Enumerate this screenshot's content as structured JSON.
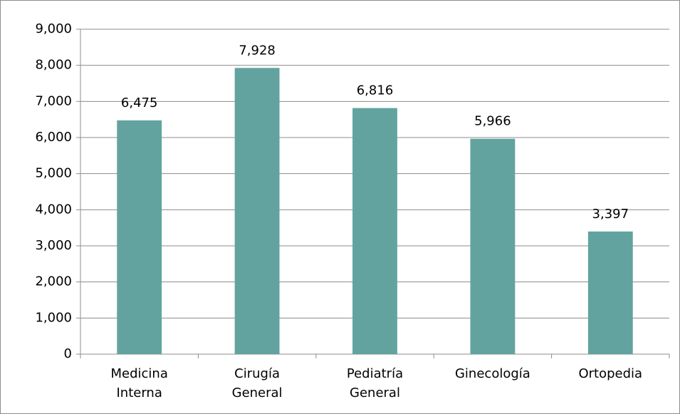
{
  "chart_data": {
    "type": "bar",
    "categories": [
      "Medicina Interna",
      "Cirugía General",
      "Pediatría General",
      "Ginecología",
      "Ortopedia"
    ],
    "values": [
      6475,
      7928,
      6816,
      5966,
      3397
    ],
    "value_labels": [
      "6,475",
      "7,928",
      "6,816",
      "5,966",
      "3,397"
    ],
    "color": "#62a39f",
    "ylim": [
      0,
      9000
    ],
    "yticks": [
      0,
      {
        "value": 1000,
        "label": "1,000"
      },
      {
        "value": 2000,
        "label": "2,000"
      },
      {
        "value": 3000,
        "label": "3,000"
      },
      {
        "value": 4000,
        "label": "4,000"
      },
      {
        "value": 5000,
        "label": "5,000"
      },
      {
        "value": 6000,
        "label": "6,000"
      },
      {
        "value": 7000,
        "label": "7,000"
      },
      {
        "value": 8000,
        "label": "8,000"
      },
      {
        "value": 9000,
        "label": "9,000"
      }
    ],
    "grid": true
  }
}
